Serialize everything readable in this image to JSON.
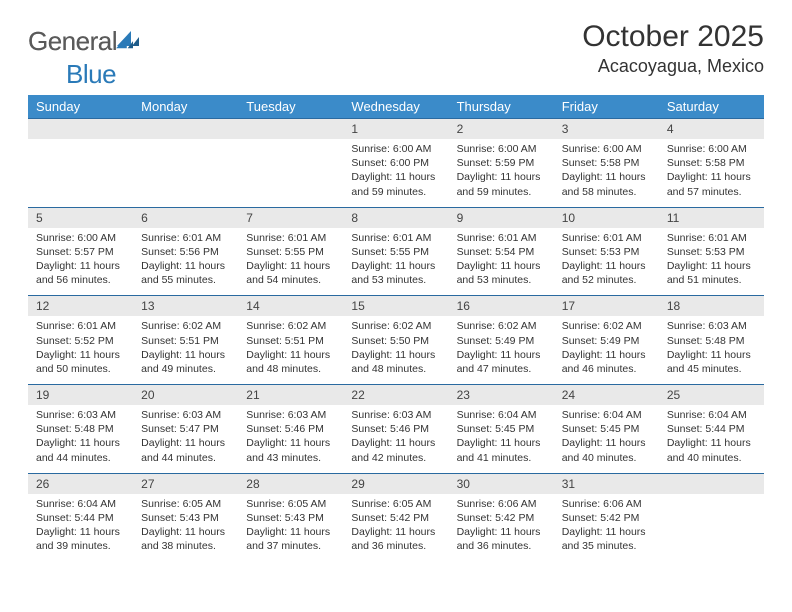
{
  "logo": {
    "textGray": "General",
    "textBlue": "Blue"
  },
  "title": "October 2025",
  "location": "Acacoyagua, Mexico",
  "colors": {
    "headerBg": "#3b8bc9",
    "headerText": "#ffffff",
    "dayNumBg": "#e9e9e9",
    "borderTop": "#2a6aa0",
    "logoGray": "#5a5a5a",
    "logoBlue": "#2a7ab8",
    "bodyText": "#333333"
  },
  "dayNames": [
    "Sunday",
    "Monday",
    "Tuesday",
    "Wednesday",
    "Thursday",
    "Friday",
    "Saturday"
  ],
  "weeks": [
    [
      null,
      null,
      null,
      {
        "n": "1",
        "sr": "Sunrise: 6:00 AM",
        "ss": "Sunset: 6:00 PM",
        "dl": "Daylight: 11 hours and 59 minutes."
      },
      {
        "n": "2",
        "sr": "Sunrise: 6:00 AM",
        "ss": "Sunset: 5:59 PM",
        "dl": "Daylight: 11 hours and 59 minutes."
      },
      {
        "n": "3",
        "sr": "Sunrise: 6:00 AM",
        "ss": "Sunset: 5:58 PM",
        "dl": "Daylight: 11 hours and 58 minutes."
      },
      {
        "n": "4",
        "sr": "Sunrise: 6:00 AM",
        "ss": "Sunset: 5:58 PM",
        "dl": "Daylight: 11 hours and 57 minutes."
      }
    ],
    [
      {
        "n": "5",
        "sr": "Sunrise: 6:00 AM",
        "ss": "Sunset: 5:57 PM",
        "dl": "Daylight: 11 hours and 56 minutes."
      },
      {
        "n": "6",
        "sr": "Sunrise: 6:01 AM",
        "ss": "Sunset: 5:56 PM",
        "dl": "Daylight: 11 hours and 55 minutes."
      },
      {
        "n": "7",
        "sr": "Sunrise: 6:01 AM",
        "ss": "Sunset: 5:55 PM",
        "dl": "Daylight: 11 hours and 54 minutes."
      },
      {
        "n": "8",
        "sr": "Sunrise: 6:01 AM",
        "ss": "Sunset: 5:55 PM",
        "dl": "Daylight: 11 hours and 53 minutes."
      },
      {
        "n": "9",
        "sr": "Sunrise: 6:01 AM",
        "ss": "Sunset: 5:54 PM",
        "dl": "Daylight: 11 hours and 53 minutes."
      },
      {
        "n": "10",
        "sr": "Sunrise: 6:01 AM",
        "ss": "Sunset: 5:53 PM",
        "dl": "Daylight: 11 hours and 52 minutes."
      },
      {
        "n": "11",
        "sr": "Sunrise: 6:01 AM",
        "ss": "Sunset: 5:53 PM",
        "dl": "Daylight: 11 hours and 51 minutes."
      }
    ],
    [
      {
        "n": "12",
        "sr": "Sunrise: 6:01 AM",
        "ss": "Sunset: 5:52 PM",
        "dl": "Daylight: 11 hours and 50 minutes."
      },
      {
        "n": "13",
        "sr": "Sunrise: 6:02 AM",
        "ss": "Sunset: 5:51 PM",
        "dl": "Daylight: 11 hours and 49 minutes."
      },
      {
        "n": "14",
        "sr": "Sunrise: 6:02 AM",
        "ss": "Sunset: 5:51 PM",
        "dl": "Daylight: 11 hours and 48 minutes."
      },
      {
        "n": "15",
        "sr": "Sunrise: 6:02 AM",
        "ss": "Sunset: 5:50 PM",
        "dl": "Daylight: 11 hours and 48 minutes."
      },
      {
        "n": "16",
        "sr": "Sunrise: 6:02 AM",
        "ss": "Sunset: 5:49 PM",
        "dl": "Daylight: 11 hours and 47 minutes."
      },
      {
        "n": "17",
        "sr": "Sunrise: 6:02 AM",
        "ss": "Sunset: 5:49 PM",
        "dl": "Daylight: 11 hours and 46 minutes."
      },
      {
        "n": "18",
        "sr": "Sunrise: 6:03 AM",
        "ss": "Sunset: 5:48 PM",
        "dl": "Daylight: 11 hours and 45 minutes."
      }
    ],
    [
      {
        "n": "19",
        "sr": "Sunrise: 6:03 AM",
        "ss": "Sunset: 5:48 PM",
        "dl": "Daylight: 11 hours and 44 minutes."
      },
      {
        "n": "20",
        "sr": "Sunrise: 6:03 AM",
        "ss": "Sunset: 5:47 PM",
        "dl": "Daylight: 11 hours and 44 minutes."
      },
      {
        "n": "21",
        "sr": "Sunrise: 6:03 AM",
        "ss": "Sunset: 5:46 PM",
        "dl": "Daylight: 11 hours and 43 minutes."
      },
      {
        "n": "22",
        "sr": "Sunrise: 6:03 AM",
        "ss": "Sunset: 5:46 PM",
        "dl": "Daylight: 11 hours and 42 minutes."
      },
      {
        "n": "23",
        "sr": "Sunrise: 6:04 AM",
        "ss": "Sunset: 5:45 PM",
        "dl": "Daylight: 11 hours and 41 minutes."
      },
      {
        "n": "24",
        "sr": "Sunrise: 6:04 AM",
        "ss": "Sunset: 5:45 PM",
        "dl": "Daylight: 11 hours and 40 minutes."
      },
      {
        "n": "25",
        "sr": "Sunrise: 6:04 AM",
        "ss": "Sunset: 5:44 PM",
        "dl": "Daylight: 11 hours and 40 minutes."
      }
    ],
    [
      {
        "n": "26",
        "sr": "Sunrise: 6:04 AM",
        "ss": "Sunset: 5:44 PM",
        "dl": "Daylight: 11 hours and 39 minutes."
      },
      {
        "n": "27",
        "sr": "Sunrise: 6:05 AM",
        "ss": "Sunset: 5:43 PM",
        "dl": "Daylight: 11 hours and 38 minutes."
      },
      {
        "n": "28",
        "sr": "Sunrise: 6:05 AM",
        "ss": "Sunset: 5:43 PM",
        "dl": "Daylight: 11 hours and 37 minutes."
      },
      {
        "n": "29",
        "sr": "Sunrise: 6:05 AM",
        "ss": "Sunset: 5:42 PM",
        "dl": "Daylight: 11 hours and 36 minutes."
      },
      {
        "n": "30",
        "sr": "Sunrise: 6:06 AM",
        "ss": "Sunset: 5:42 PM",
        "dl": "Daylight: 11 hours and 36 minutes."
      },
      {
        "n": "31",
        "sr": "Sunrise: 6:06 AM",
        "ss": "Sunset: 5:42 PM",
        "dl": "Daylight: 11 hours and 35 minutes."
      },
      null
    ]
  ]
}
